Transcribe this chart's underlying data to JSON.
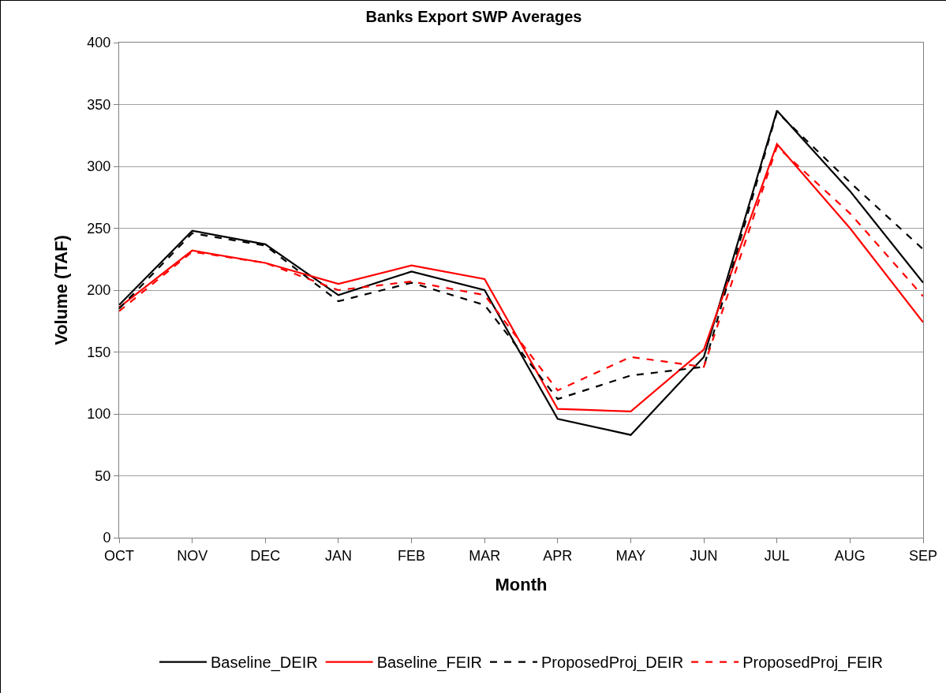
{
  "chart_data": {
    "type": "line",
    "title": "Banks Export SWP Averages",
    "xlabel": "Month",
    "ylabel": "Volume (TAF)",
    "categories": [
      "OCT",
      "NOV",
      "DEC",
      "JAN",
      "FEB",
      "MAR",
      "APR",
      "MAY",
      "JUN",
      "JUL",
      "AUG",
      "SEP"
    ],
    "series": [
      {
        "name": "Baseline_DEIR",
        "color": "#000000",
        "line_style": "solid",
        "values": [
          188,
          248,
          237,
          196,
          215,
          200,
          96,
          83,
          146,
          345,
          280,
          206
        ]
      },
      {
        "name": "Baseline_FEIR",
        "color": "#ff0000",
        "line_style": "solid",
        "values": [
          186,
          232,
          222,
          205,
          220,
          209,
          104,
          102,
          152,
          318,
          250,
          174
        ]
      },
      {
        "name": "ProposedProj_DEIR",
        "color": "#000000",
        "line_style": "dashed",
        "values": [
          185,
          246,
          236,
          191,
          206,
          188,
          112,
          131,
          138,
          344,
          287,
          233
        ]
      },
      {
        "name": "ProposedProj_FEIR",
        "color": "#ff0000",
        "line_style": "dashed",
        "values": [
          183,
          231,
          222,
          200,
          207,
          196,
          119,
          146,
          138,
          316,
          262,
          195
        ]
      }
    ],
    "ylim": [
      0,
      400
    ],
    "yticks": [
      0,
      50,
      100,
      150,
      200,
      250,
      300,
      350,
      400
    ],
    "grid": "y",
    "legend": "bottom",
    "marker": "none"
  }
}
